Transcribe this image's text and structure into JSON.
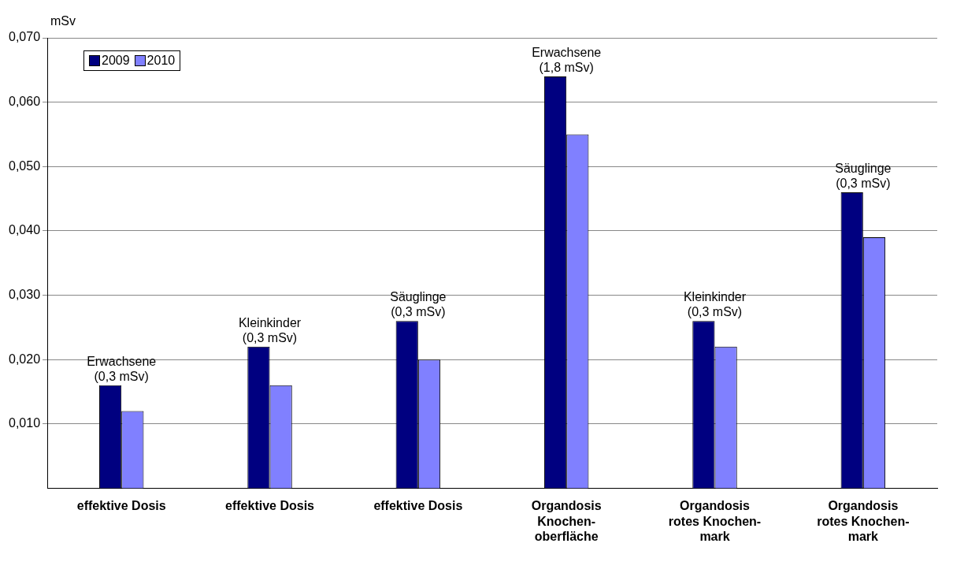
{
  "chart_data": {
    "type": "bar",
    "ylabel": "mSv",
    "categories": [
      "effektive Dosis",
      "effektive Dosis",
      "effektive Dosis",
      "Organdosis\nKnochen-\noberfläche",
      "Organdosis\nrotes Knochen-\nmark",
      "Organdosis\nrotes Knochen-\nmark"
    ],
    "series": [
      {
        "name": "2009",
        "color": "#000080",
        "values": [
          0.016,
          0.022,
          0.026,
          0.064,
          0.026,
          0.046
        ]
      },
      {
        "name": "2010",
        "color": "#8080ff",
        "values": [
          0.012,
          0.016,
          0.02,
          0.055,
          0.022,
          0.039
        ]
      }
    ],
    "ylim": [
      0,
      0.07
    ],
    "yticks": [
      {
        "value": 0.01,
        "label": "0,010"
      },
      {
        "value": 0.02,
        "label": "0,020"
      },
      {
        "value": 0.03,
        "label": "0,030"
      },
      {
        "value": 0.04,
        "label": "0,040"
      },
      {
        "value": 0.05,
        "label": "0,050"
      },
      {
        "value": 0.06,
        "label": "0,060"
      },
      {
        "value": 0.07,
        "label": "0,070"
      }
    ],
    "grid": "y",
    "legend": "top left",
    "annotations": [
      "Erwachsene\n(0,3 mSv)",
      "Kleinkinder\n(0,3 mSv)",
      "Säuglinge\n(0,3 mSv)",
      "Erwachsene\n(1,8 mSv)",
      "Kleinkinder\n(0,3 mSv)",
      "Säuglinge\n(0,3 mSv)"
    ]
  }
}
